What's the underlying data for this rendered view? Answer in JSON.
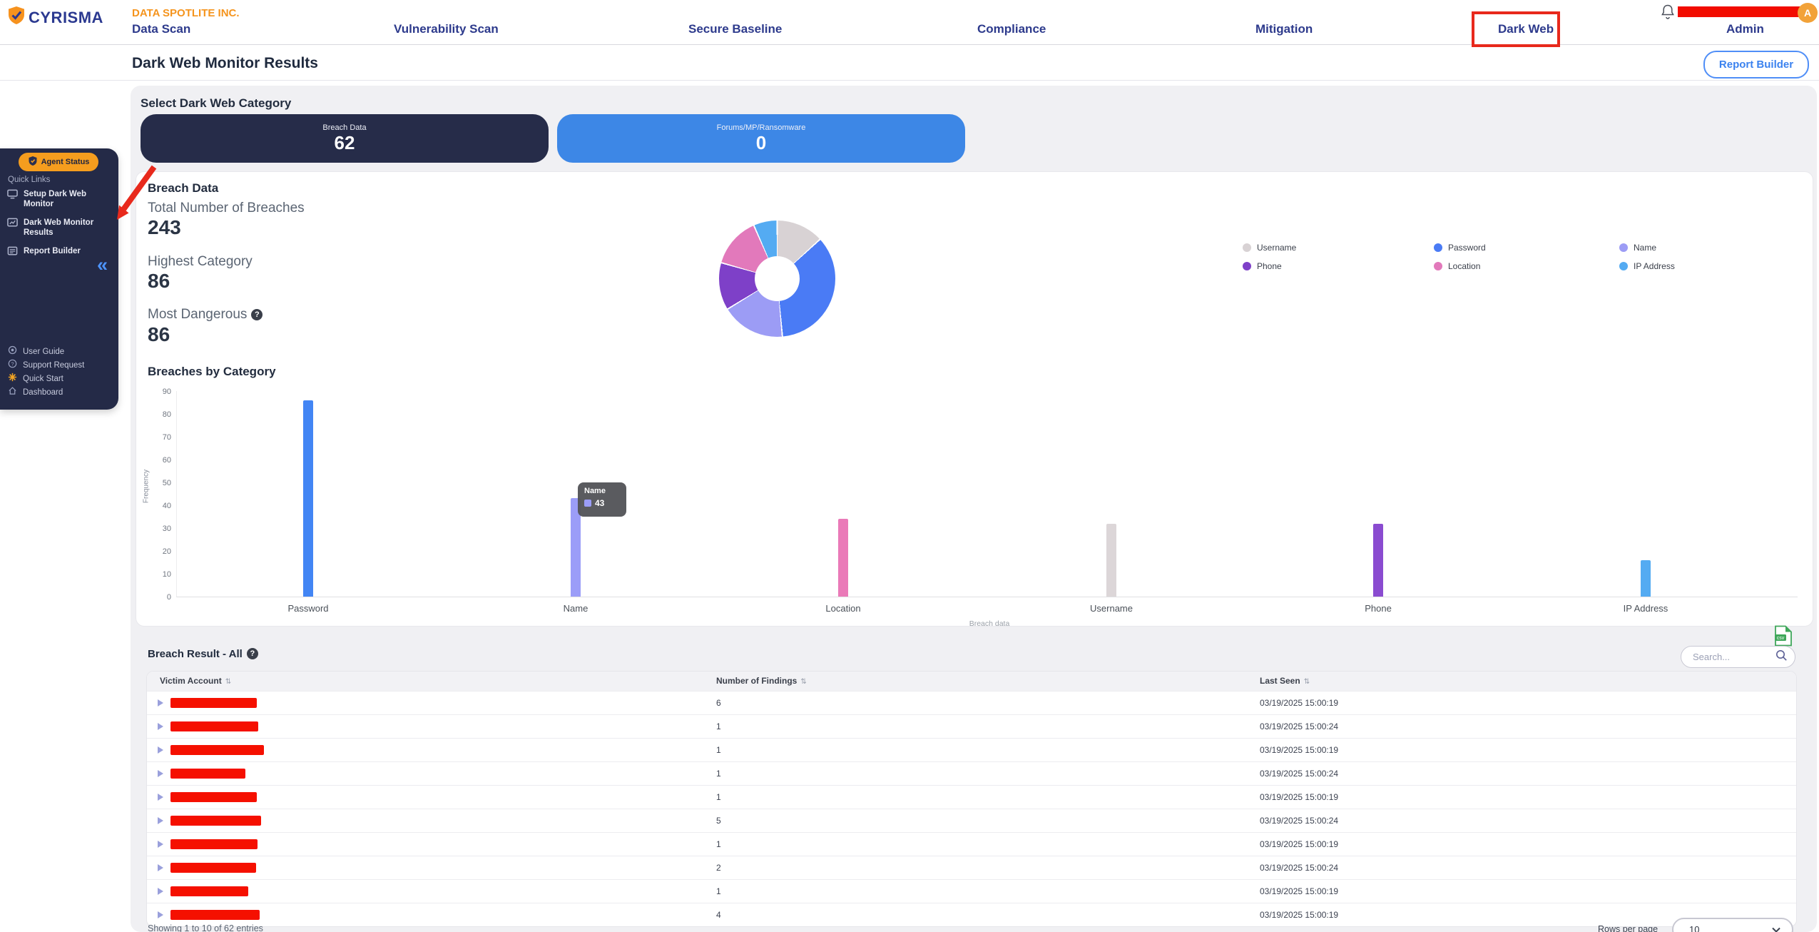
{
  "brand": {
    "name": "CYRISMA",
    "org": "DATA SPOTLITE INC."
  },
  "nav": {
    "items": [
      "Data Scan",
      "Vulnerability Scan",
      "Secure Baseline",
      "Compliance",
      "Mitigation",
      "Dark Web",
      "Admin"
    ],
    "active": "Dark Web",
    "avatar_letter": "A"
  },
  "header": {
    "title": "Dark Web Monitor Results",
    "report_builder_label": "Report Builder"
  },
  "sidebar": {
    "agent_status_label": "Agent Status",
    "quick_links_label": "Quick Links",
    "items": [
      {
        "label": "Setup Dark Web Monitor"
      },
      {
        "label": "Dark Web Monitor Results"
      },
      {
        "label": "Report Builder"
      }
    ],
    "collapse_icon": "«",
    "footer_items": [
      {
        "label": "User Guide"
      },
      {
        "label": "Support Request"
      },
      {
        "label": "Quick Start"
      },
      {
        "label": "Dashboard"
      }
    ]
  },
  "category_select": {
    "heading": "Select Dark Web Category",
    "cards": [
      {
        "label": "Breach Data",
        "value": "62",
        "color": "#262c49"
      },
      {
        "label": "Forums/MP/Ransomware",
        "value": "0",
        "color": "#3d87e6"
      }
    ]
  },
  "breach_section": {
    "heading": "Breach Data",
    "stats": [
      {
        "label": "Total Number of Breaches",
        "value": "243"
      },
      {
        "label": "Highest Category",
        "value": "86"
      },
      {
        "label": "Most Dangerous",
        "value": "86"
      }
    ]
  },
  "chart_data": [
    {
      "type": "pie",
      "donut": true,
      "labels": [
        "Username",
        "Password",
        "Name",
        "Phone",
        "Location",
        "IP Address"
      ],
      "values": [
        32,
        86,
        43,
        32,
        34,
        16
      ],
      "total": 243,
      "colors": [
        "#d8d2d4",
        "#4a7bf5",
        "#9c9cf5",
        "#7e40c8",
        "#e279bb",
        "#54abf2"
      ],
      "legend_position": "right"
    },
    {
      "type": "bar",
      "title": "Breaches by Category",
      "categories": [
        "Password",
        "Name",
        "Location",
        "Username",
        "Phone",
        "IP Address"
      ],
      "values": [
        86,
        43,
        34,
        32,
        32,
        16
      ],
      "colors": [
        "#4285f4",
        "#9b9df8",
        "#ea7ab8",
        "#dcd6d8",
        "#8a4bd0",
        "#54abf2"
      ],
      "xlabel": "Breach data",
      "ylabel": "Frequency",
      "ylim": [
        0,
        90
      ],
      "ytick_step": 10,
      "grid": false,
      "tooltip": {
        "label": "Name",
        "value": "43"
      }
    }
  ],
  "table": {
    "title": "Breach Result - All",
    "search_placeholder": "Search...",
    "export_icon": "csv-export-icon",
    "columns": [
      "Victim Account",
      "Number of Findings",
      "Last Seen"
    ],
    "rows": [
      {
        "findings": "6",
        "last_seen": "03/19/2025 15:00:19",
        "redaction_width": 121
      },
      {
        "findings": "1",
        "last_seen": "03/19/2025 15:00:24",
        "redaction_width": 123
      },
      {
        "findings": "1",
        "last_seen": "03/19/2025 15:00:19",
        "redaction_width": 131
      },
      {
        "findings": "1",
        "last_seen": "03/19/2025 15:00:24",
        "redaction_width": 105
      },
      {
        "findings": "1",
        "last_seen": "03/19/2025 15:00:19",
        "redaction_width": 121
      },
      {
        "findings": "5",
        "last_seen": "03/19/2025 15:00:24",
        "redaction_width": 127
      },
      {
        "findings": "1",
        "last_seen": "03/19/2025 15:00:19",
        "redaction_width": 122
      },
      {
        "findings": "2",
        "last_seen": "03/19/2025 15:00:24",
        "redaction_width": 120
      },
      {
        "findings": "1",
        "last_seen": "03/19/2025 15:00:19",
        "redaction_width": 109
      },
      {
        "findings": "4",
        "last_seen": "03/19/2025 15:00:19",
        "redaction_width": 125
      }
    ]
  },
  "footer": {
    "showing_text": "Showing 1 to 10 of 62 entries",
    "rows_per_page_label": "Rows per page",
    "rows_per_page_value": "10"
  },
  "annotations": {
    "highlight_color": "#e8291c",
    "highlighted_nav_item": "Dark Web",
    "arrow_target": "Dark Web Monitor Results"
  }
}
